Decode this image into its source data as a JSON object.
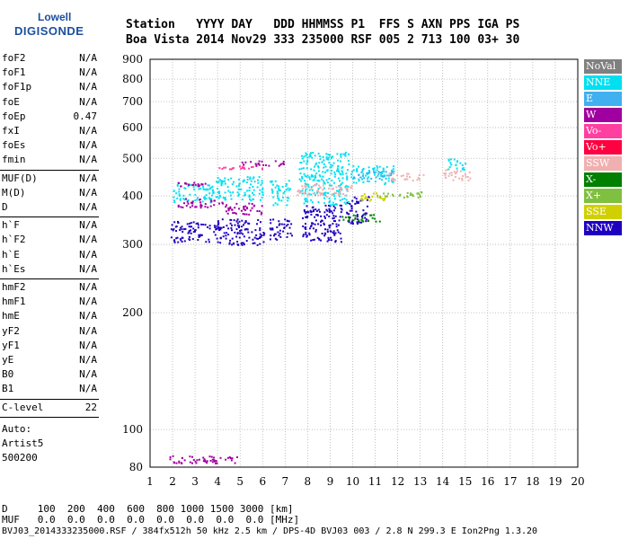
{
  "logo": {
    "line1": "Lowell",
    "line2": "DIGISONDE"
  },
  "header": {
    "line1": "Station   YYYY DAY   DDD HHMMSS P1  FFS S AXN PPS IGA PS",
    "line2": "Boa Vista 2014 Nov29 333 235000 RSF 005 2 713 100 03+ 30"
  },
  "params": {
    "group1": [
      {
        "name": "foF2",
        "value": "N/A"
      },
      {
        "name": "foF1",
        "value": "N/A"
      },
      {
        "name": "foF1p",
        "value": "N/A"
      },
      {
        "name": "foE",
        "value": "N/A"
      },
      {
        "name": "foEp",
        "value": "0.47"
      },
      {
        "name": "fxI",
        "value": "N/A"
      },
      {
        "name": "foEs",
        "value": "N/A"
      },
      {
        "name": "fmin",
        "value": "N/A"
      }
    ],
    "group2": [
      {
        "name": "MUF(D)",
        "value": "N/A"
      },
      {
        "name": "M(D)",
        "value": "N/A"
      },
      {
        "name": "D",
        "value": "N/A"
      }
    ],
    "group3": [
      {
        "name": "h`F",
        "value": "N/A"
      },
      {
        "name": "h`F2",
        "value": "N/A"
      },
      {
        "name": "h`E",
        "value": "N/A"
      },
      {
        "name": "h`Es",
        "value": "N/A"
      }
    ],
    "group4": [
      {
        "name": "hmF2",
        "value": "N/A"
      },
      {
        "name": "hmF1",
        "value": "N/A"
      },
      {
        "name": "hmE",
        "value": "N/A"
      },
      {
        "name": "yF2",
        "value": "N/A"
      },
      {
        "name": "yF1",
        "value": "N/A"
      },
      {
        "name": "yE",
        "value": "N/A"
      },
      {
        "name": "B0",
        "value": "N/A"
      },
      {
        "name": "B1",
        "value": "N/A"
      }
    ],
    "clevel": {
      "name": "C-level",
      "value": "22"
    },
    "auto": [
      "Auto:",
      "Artist5",
      "500200"
    ]
  },
  "legend": [
    {
      "label": "NoVal",
      "color": "#808080"
    },
    {
      "label": "NNE",
      "color": "#00e0f0"
    },
    {
      "label": "E",
      "color": "#40b0f0"
    },
    {
      "label": "W",
      "color": "#a000a0"
    },
    {
      "label": "Vo-",
      "color": "#ff40a0"
    },
    {
      "label": "Vo+",
      "color": "#ff0040"
    },
    {
      "label": "SSW",
      "color": "#f0b0b0"
    },
    {
      "label": "X-",
      "color": "#008000"
    },
    {
      "label": "X+",
      "color": "#80c040"
    },
    {
      "label": "SSE",
      "color": "#d0d000"
    },
    {
      "label": "NNW",
      "color": "#2000c0"
    }
  ],
  "bottom": {
    "line1": "D     100  200  400  600  800 1000 1500 3000 [km]",
    "line2": "MUF   0.0  0.0  0.0  0.0  0.0  0.0  0.0  0.0 [MHz]",
    "line3": "BVJ03_2014333235000.RSF / 384fx512h 50 kHz 2.5 km / DPS-4D BVJ03 003 / 2.8 N 299.3 E Ion2Png 1.3.20"
  },
  "chart_data": {
    "type": "scatter",
    "xlim": [
      1,
      20
    ],
    "ylim": [
      80,
      900
    ],
    "xticks": [
      1,
      2,
      3,
      4,
      5,
      6,
      7,
      8,
      9,
      10,
      11,
      12,
      13,
      14,
      15,
      16,
      17,
      18,
      19,
      20
    ],
    "yticks": [
      80,
      100,
      200,
      300,
      400,
      500,
      600,
      700,
      800,
      900
    ],
    "y_scale": "log",
    "grid": "dotted",
    "clusters": [
      {
        "color": "#2000c0",
        "x": [
          1.9,
          3.7
        ],
        "y": [
          305,
          345
        ]
      },
      {
        "color": "#2000c0",
        "x": [
          3.8,
          6.1
        ],
        "y": [
          300,
          350
        ]
      },
      {
        "color": "#2000c0",
        "x": [
          6.3,
          7.3
        ],
        "y": [
          310,
          350
        ]
      },
      {
        "color": "#2000c0",
        "x": [
          7.7,
          9.5
        ],
        "y": [
          305,
          380
        ]
      },
      {
        "color": "#2000c0",
        "x": [
          9.7,
          10.7
        ],
        "y": [
          340,
          400
        ]
      },
      {
        "color": "#00e0f0",
        "x": [
          2.0,
          3.8
        ],
        "y": [
          385,
          430
        ]
      },
      {
        "color": "#00e0f0",
        "x": [
          3.9,
          6.0
        ],
        "y": [
          390,
          450
        ]
      },
      {
        "color": "#00e0f0",
        "x": [
          6.3,
          7.2
        ],
        "y": [
          380,
          440
        ]
      },
      {
        "color": "#00e0f0",
        "x": [
          7.6,
          9.8
        ],
        "y": [
          380,
          520
        ]
      },
      {
        "color": "#00e0f0",
        "x": [
          9.9,
          11.8
        ],
        "y": [
          430,
          480
        ]
      },
      {
        "color": "#00e0f0",
        "x": [
          14.2,
          15.0
        ],
        "y": [
          470,
          500
        ]
      },
      {
        "color": "#40b0f0",
        "x": [
          10.0,
          11.8
        ],
        "y": [
          445,
          465
        ]
      },
      {
        "color": "#a000a0",
        "x": [
          2.2,
          4.2
        ],
        "y": [
          375,
          395
        ]
      },
      {
        "color": "#a000a0",
        "x": [
          4.2,
          6.0
        ],
        "y": [
          360,
          385
        ]
      },
      {
        "color": "#a000a0",
        "x": [
          2.2,
          3.5
        ],
        "y": [
          425,
          435
        ]
      },
      {
        "color": "#a000a0",
        "x": [
          4.8,
          7.0
        ],
        "y": [
          480,
          495
        ]
      },
      {
        "color": "#a000a0",
        "x": [
          1.8,
          4.9
        ],
        "y": [
          82,
          86
        ]
      },
      {
        "color": "#f0b0b0",
        "x": [
          11.5,
          13.2
        ],
        "y": [
          440,
          460
        ]
      },
      {
        "color": "#f0b0b0",
        "x": [
          14.0,
          15.2
        ],
        "y": [
          440,
          470
        ]
      },
      {
        "color": "#f0b0b0",
        "x": [
          7.5,
          10.0
        ],
        "y": [
          400,
          430
        ]
      },
      {
        "color": "#d0d000",
        "x": [
          10.1,
          11.6
        ],
        "y": [
          390,
          410
        ]
      },
      {
        "color": "#80c040",
        "x": [
          11.0,
          13.2
        ],
        "y": [
          398,
          412
        ]
      },
      {
        "color": "#008000",
        "x": [
          9.5,
          11.2
        ],
        "y": [
          345,
          360
        ]
      },
      {
        "color": "#ff40a0",
        "x": [
          4.0,
          6.0
        ],
        "y": [
          470,
          480
        ]
      }
    ]
  }
}
